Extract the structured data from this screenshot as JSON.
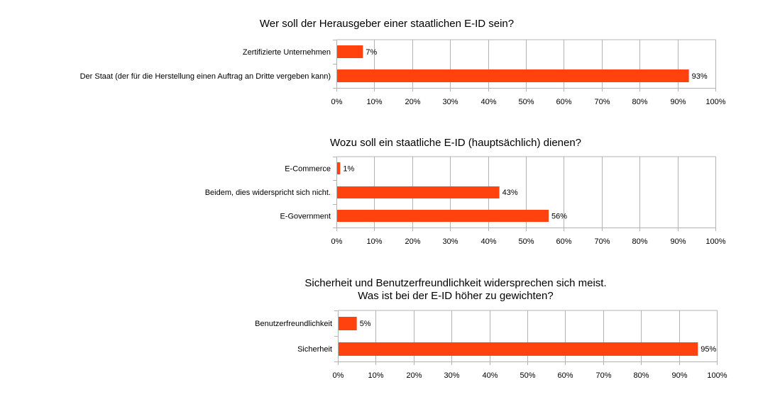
{
  "colors": {
    "bar": "#ff420e",
    "grid": "#b3b3b3",
    "axis": "#b3b3b3",
    "text": "#000000"
  },
  "chart_data": [
    {
      "type": "bar",
      "orientation": "horizontal",
      "title": "Wer soll der Herausgeber einer staatlichen E-ID sein?",
      "categories": [
        "Zertifizierte Unternehmen",
        "Der Staat (der für die Herstellung einen Auftrag an Dritte vergeben kann)"
      ],
      "values": [
        7,
        93
      ],
      "value_labels": [
        "7%",
        "93%"
      ],
      "xlim": [
        0,
        100
      ],
      "ticks": [
        "0%",
        "10%",
        "20%",
        "30%",
        "40%",
        "50%",
        "60%",
        "70%",
        "80%",
        "90%",
        "100%"
      ],
      "grid": true,
      "legend": "none"
    },
    {
      "type": "bar",
      "orientation": "horizontal",
      "title": "Wozu soll ein staatliche E-ID (hauptsächlich) dienen?",
      "categories": [
        "E-Commerce",
        "Beidem, dies widerspricht sich nicht.",
        "E-Government"
      ],
      "values": [
        1,
        43,
        56
      ],
      "value_labels": [
        "1%",
        "43%",
        "56%"
      ],
      "xlim": [
        0,
        100
      ],
      "ticks": [
        "0%",
        "10%",
        "20%",
        "30%",
        "40%",
        "50%",
        "60%",
        "70%",
        "80%",
        "90%",
        "100%"
      ],
      "grid": true,
      "legend": "none"
    },
    {
      "type": "bar",
      "orientation": "horizontal",
      "title": "Sicherheit und Benutzerfreundlichkeit widersprechen sich meist.\nWas ist bei der E-ID höher zu gewichten?",
      "categories": [
        "Benutzerfreundlichkeit",
        "Sicherheit"
      ],
      "values": [
        5,
        95
      ],
      "value_labels": [
        "5%",
        "95%"
      ],
      "xlim": [
        0,
        100
      ],
      "ticks": [
        "0%",
        "10%",
        "20%",
        "30%",
        "40%",
        "50%",
        "60%",
        "70%",
        "80%",
        "90%",
        "100%"
      ],
      "grid": true,
      "legend": "none"
    }
  ]
}
